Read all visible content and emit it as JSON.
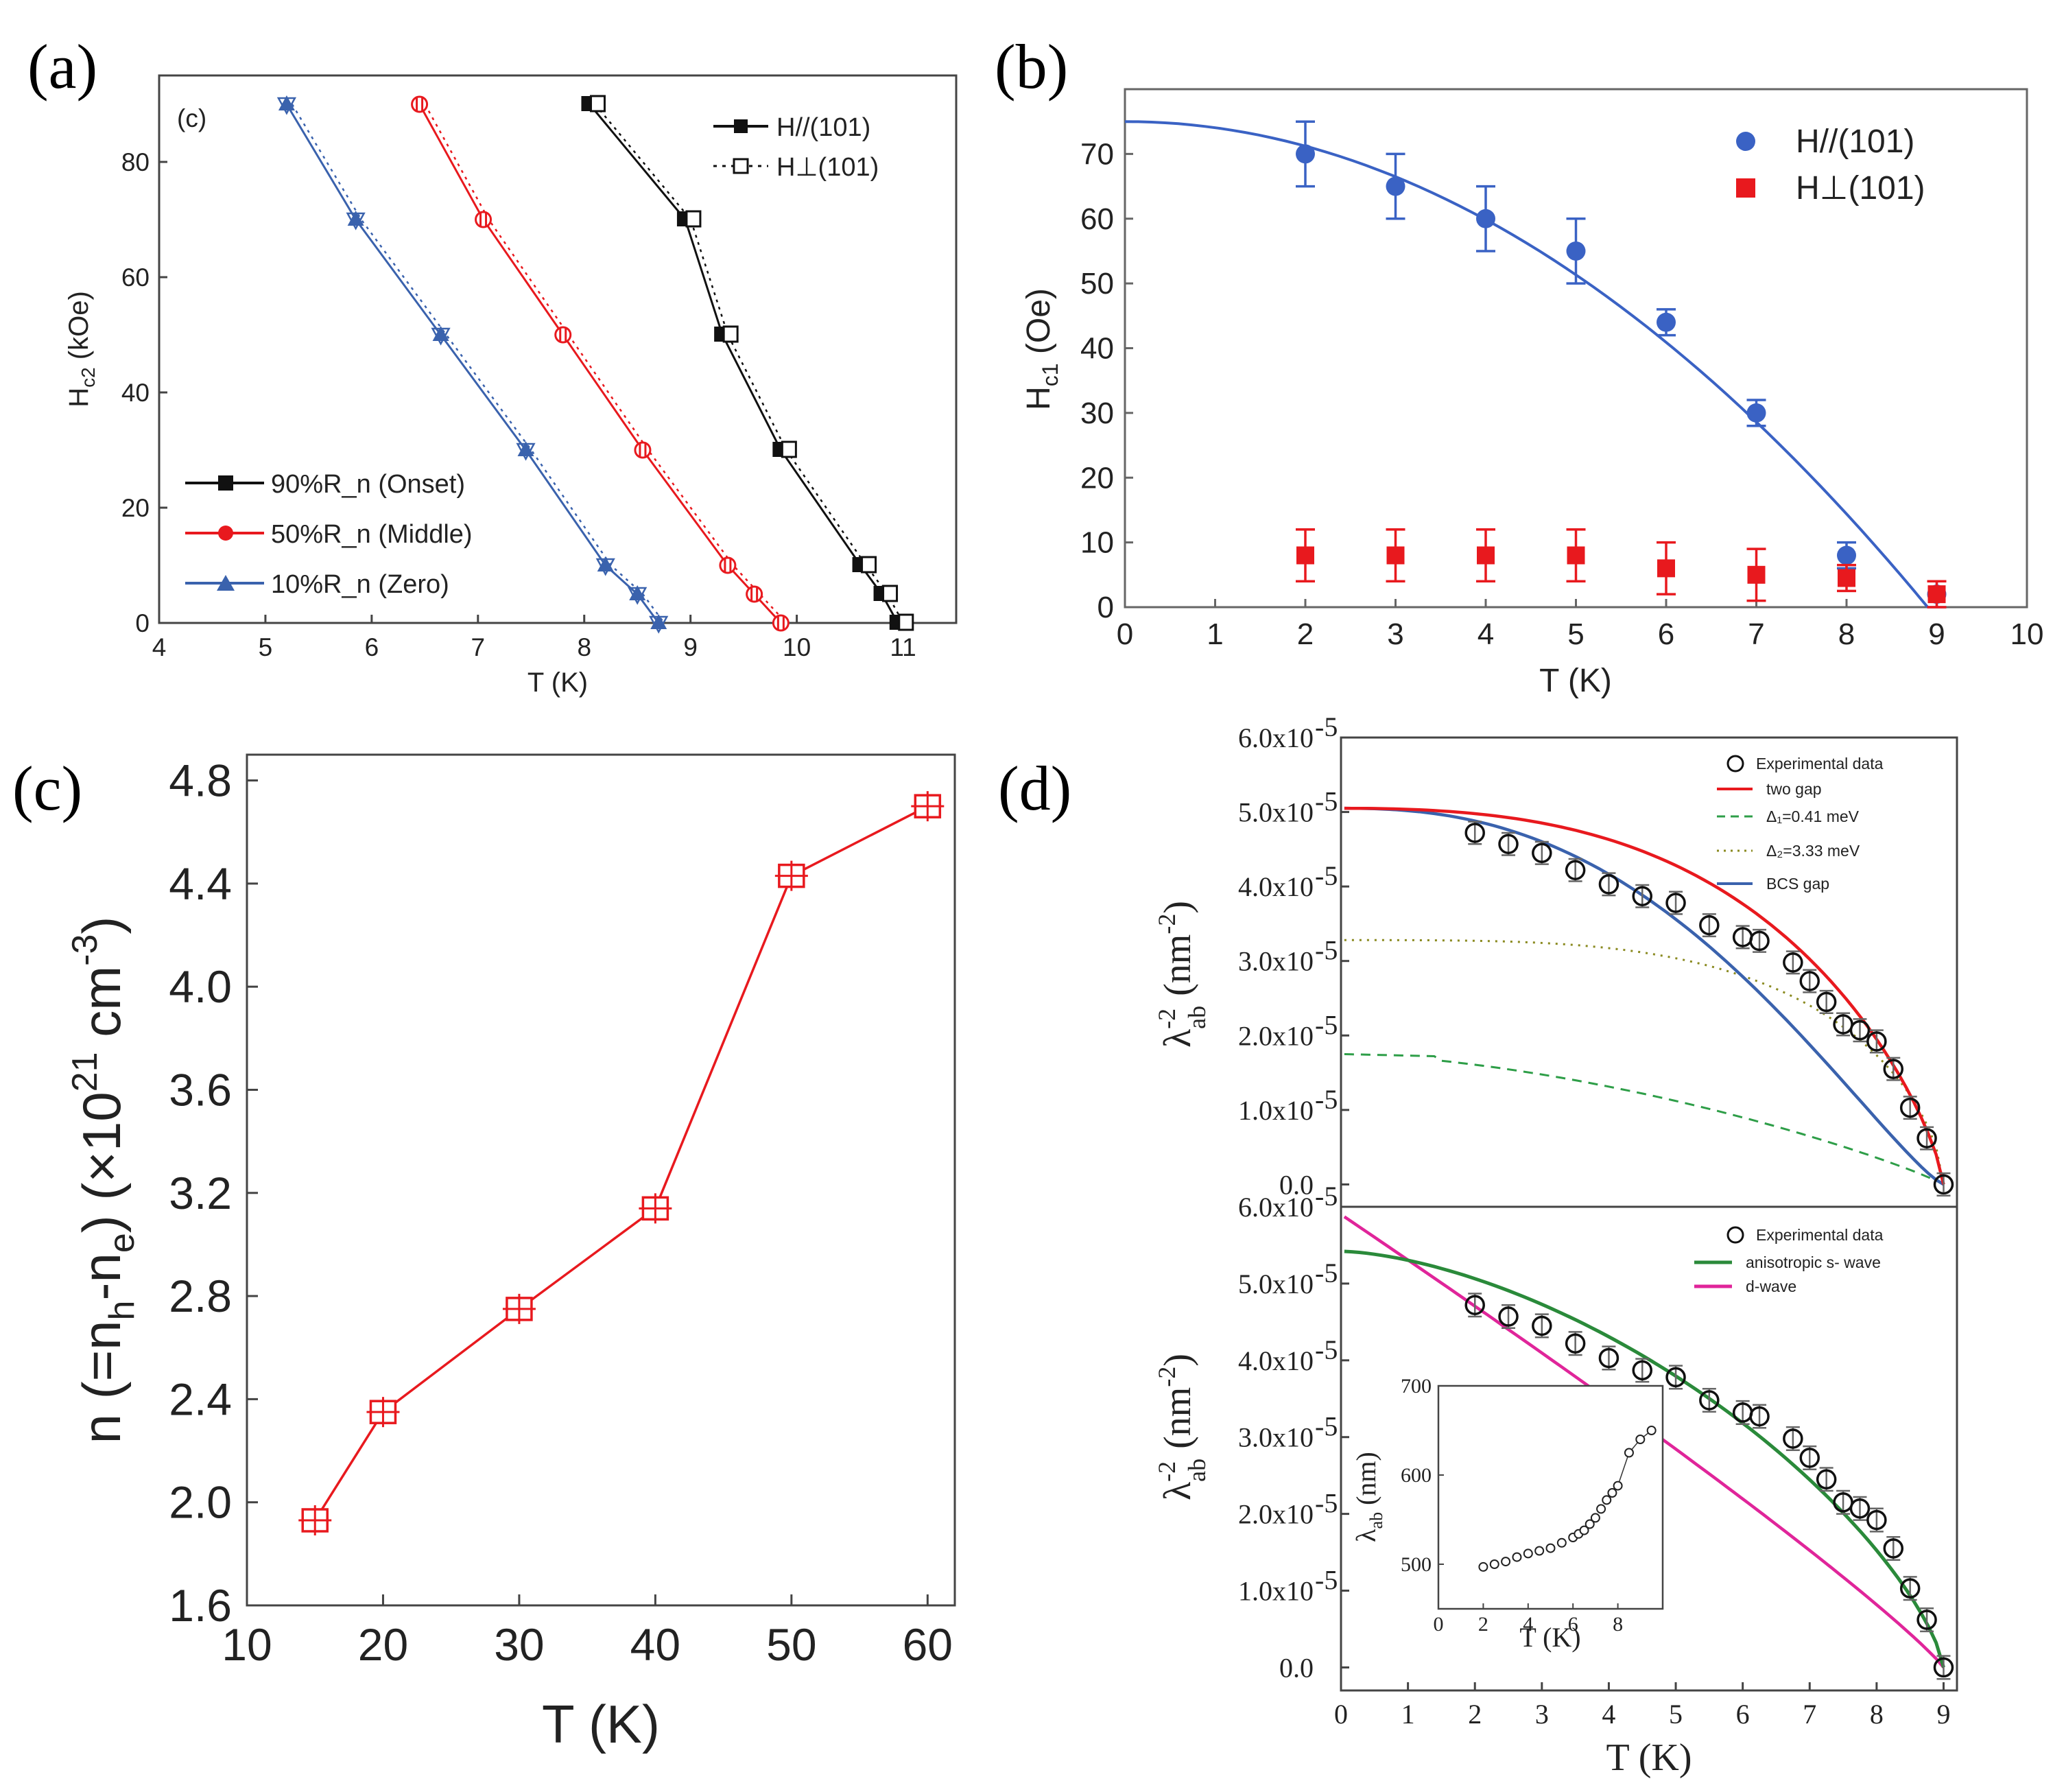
{
  "chart_data": [
    {
      "id": "a",
      "type": "line",
      "panel_label": "(a)",
      "inner_label": "(c)",
      "xlabel": "T (K)",
      "ylabel": "H_c2 (kOe)",
      "xlim": [
        4,
        11.5
      ],
      "ylim": [
        0,
        95
      ],
      "xticks": [
        4,
        5,
        6,
        7,
        8,
        9,
        10,
        11
      ],
      "yticks": [
        0,
        20,
        40,
        60,
        80
      ],
      "criteria_legend": [
        "90%R_n (Onset)",
        "50%R_n (Middle)",
        "10%R_n (Zero)"
      ],
      "direction_legend": [
        "H//(101)",
        "H⊥(101)"
      ],
      "series": [
        {
          "name": "90%R_n (Onset)",
          "color": "#111111",
          "marker": "square",
          "points": [
            [
              8.05,
              90
            ],
            [
              8.95,
              70
            ],
            [
              9.3,
              50
            ],
            [
              9.85,
              30
            ],
            [
              10.6,
              10
            ],
            [
              10.8,
              5
            ],
            [
              10.95,
              0
            ]
          ]
        },
        {
          "name": "50%R_n (Middle)",
          "color": "#e8191e",
          "marker": "circle",
          "points": [
            [
              6.45,
              90
            ],
            [
              7.05,
              70
            ],
            [
              7.8,
              50
            ],
            [
              8.55,
              30
            ],
            [
              9.35,
              10
            ],
            [
              9.6,
              5
            ],
            [
              9.85,
              0
            ]
          ]
        },
        {
          "name": "10%R_n (Zero)",
          "color": "#3a62ad",
          "marker": "triangle",
          "points": [
            [
              5.2,
              90
            ],
            [
              5.85,
              70
            ],
            [
              6.65,
              50
            ],
            [
              7.45,
              30
            ],
            [
              8.2,
              10
            ],
            [
              8.5,
              5
            ],
            [
              8.7,
              0
            ]
          ]
        }
      ]
    },
    {
      "id": "b",
      "type": "scatter",
      "panel_label": "(b)",
      "xlabel": "T (K)",
      "ylabel": "H_c1 (Oe)",
      "xlim": [
        0,
        10
      ],
      "ylim": [
        0,
        80
      ],
      "xticks": [
        0,
        1,
        2,
        3,
        4,
        5,
        6,
        7,
        8,
        9,
        10
      ],
      "yticks": [
        0,
        10,
        20,
        30,
        40,
        50,
        60,
        70
      ],
      "series": [
        {
          "name": "H//(101)",
          "color": "#3a62c4",
          "marker": "circle",
          "points": [
            [
              2,
              70,
              5
            ],
            [
              3,
              65,
              5
            ],
            [
              4,
              60,
              5
            ],
            [
              5,
              55,
              5
            ],
            [
              6,
              44,
              2
            ],
            [
              7,
              30,
              2
            ],
            [
              8,
              8,
              2
            ],
            [
              9,
              2,
              2
            ]
          ]
        },
        {
          "name": "H⊥(101)",
          "color": "#e8191e",
          "marker": "square",
          "points": [
            [
              2,
              8,
              4
            ],
            [
              3,
              8,
              4
            ],
            [
              4,
              8,
              4
            ],
            [
              5,
              8,
              4
            ],
            [
              6,
              6,
              4
            ],
            [
              7,
              5,
              4
            ],
            [
              8,
              4.5,
              2
            ],
            [
              9,
              2,
              2
            ]
          ]
        }
      ],
      "fit": {
        "name": "fit",
        "color": "#3a62c4",
        "H0": 75,
        "Tc": 8.9
      }
    },
    {
      "id": "c",
      "type": "line",
      "panel_label": "(c)",
      "xlabel": "T (K)",
      "ylabel": "n (=n_h-n_e) (×10^21 cm^-3)",
      "xlim": [
        10,
        62
      ],
      "ylim": [
        1.6,
        4.9
      ],
      "xticks": [
        10,
        20,
        30,
        40,
        50,
        60
      ],
      "yticks": [
        1.6,
        2.0,
        2.4,
        2.8,
        3.2,
        3.6,
        4.0,
        4.4,
        4.8
      ],
      "ytick_labels": [
        "1.6",
        "2.0",
        "2.4",
        "2.8",
        "3.2",
        "3.6",
        "4.0",
        "4.4",
        "4.8"
      ],
      "series": [
        {
          "name": "n",
          "color": "#e8191e",
          "x": [
            15,
            20,
            30,
            40,
            50,
            60
          ],
          "values": [
            1.93,
            2.35,
            2.75,
            3.14,
            4.43,
            4.7
          ]
        }
      ]
    },
    {
      "id": "d",
      "type": "line",
      "panel_label": "(d)",
      "xlabel": "T (K)",
      "ylabel": "λ^-2_ab (nm^-2)",
      "xlim": [
        0,
        9.2
      ],
      "ylim": [
        -0.3,
        6.0
      ],
      "xticks": [
        0,
        1,
        2,
        3,
        4,
        5,
        6,
        7,
        8,
        9
      ],
      "yticks": [
        0,
        1,
        2,
        3,
        4,
        5,
        6
      ],
      "ytick_labels": [
        "0.0",
        "1.0x10",
        "2.0x10",
        "3.0x10",
        "4.0x10",
        "5.0x10",
        "6.0x10"
      ],
      "ytick_exp": "-5",
      "experimental": [
        [
          2,
          4.72
        ],
        [
          2.5,
          4.57
        ],
        [
          3,
          4.45
        ],
        [
          3.5,
          4.22
        ],
        [
          4,
          4.03
        ],
        [
          4.5,
          3.87
        ],
        [
          5,
          3.78
        ],
        [
          5.5,
          3.48
        ],
        [
          6,
          3.32
        ],
        [
          6.25,
          3.27
        ],
        [
          6.75,
          2.98
        ],
        [
          7,
          2.73
        ],
        [
          7.25,
          2.45
        ],
        [
          7.5,
          2.15
        ],
        [
          7.75,
          2.07
        ],
        [
          8,
          1.92
        ],
        [
          8.25,
          1.55
        ],
        [
          8.5,
          1.03
        ],
        [
          8.75,
          0.62
        ],
        [
          9,
          0.0
        ]
      ],
      "top_legend": [
        "Experimental data",
        "two gap",
        "Δ₁=0.41 meV",
        "Δ₂=3.33 meV",
        "BCS gap"
      ],
      "bottom_legend": [
        "Experimental data",
        "anisotropic s- wave",
        "d-wave"
      ],
      "colors": {
        "two_gap": "#e8191e",
        "delta1": "#2e9e48",
        "delta2": "#8a8a20",
        "bcs": "#3a62ad",
        "aniso": "#2a8a3a",
        "dwave": "#e0259a"
      },
      "inset": {
        "xlabel": "T (K)",
        "ylabel": "λ_ab (nm)",
        "xlim": [
          0,
          10
        ],
        "ylim": [
          450,
          700
        ],
        "xticks": [
          0,
          2,
          4,
          6,
          8
        ],
        "yticks": [
          500,
          600,
          700
        ],
        "points": [
          [
            2,
            497
          ],
          [
            2.5,
            500
          ],
          [
            3,
            503
          ],
          [
            3.5,
            508
          ],
          [
            4,
            512
          ],
          [
            4.5,
            515
          ],
          [
            5,
            518
          ],
          [
            5.5,
            524
          ],
          [
            6,
            530
          ],
          [
            6.25,
            534
          ],
          [
            6.5,
            538
          ],
          [
            6.75,
            545
          ],
          [
            7,
            552
          ],
          [
            7.25,
            562
          ],
          [
            7.5,
            572
          ],
          [
            7.75,
            580
          ],
          [
            8,
            588
          ],
          [
            8.5,
            625
          ],
          [
            9,
            640
          ],
          [
            9.5,
            650
          ]
        ]
      }
    }
  ]
}
